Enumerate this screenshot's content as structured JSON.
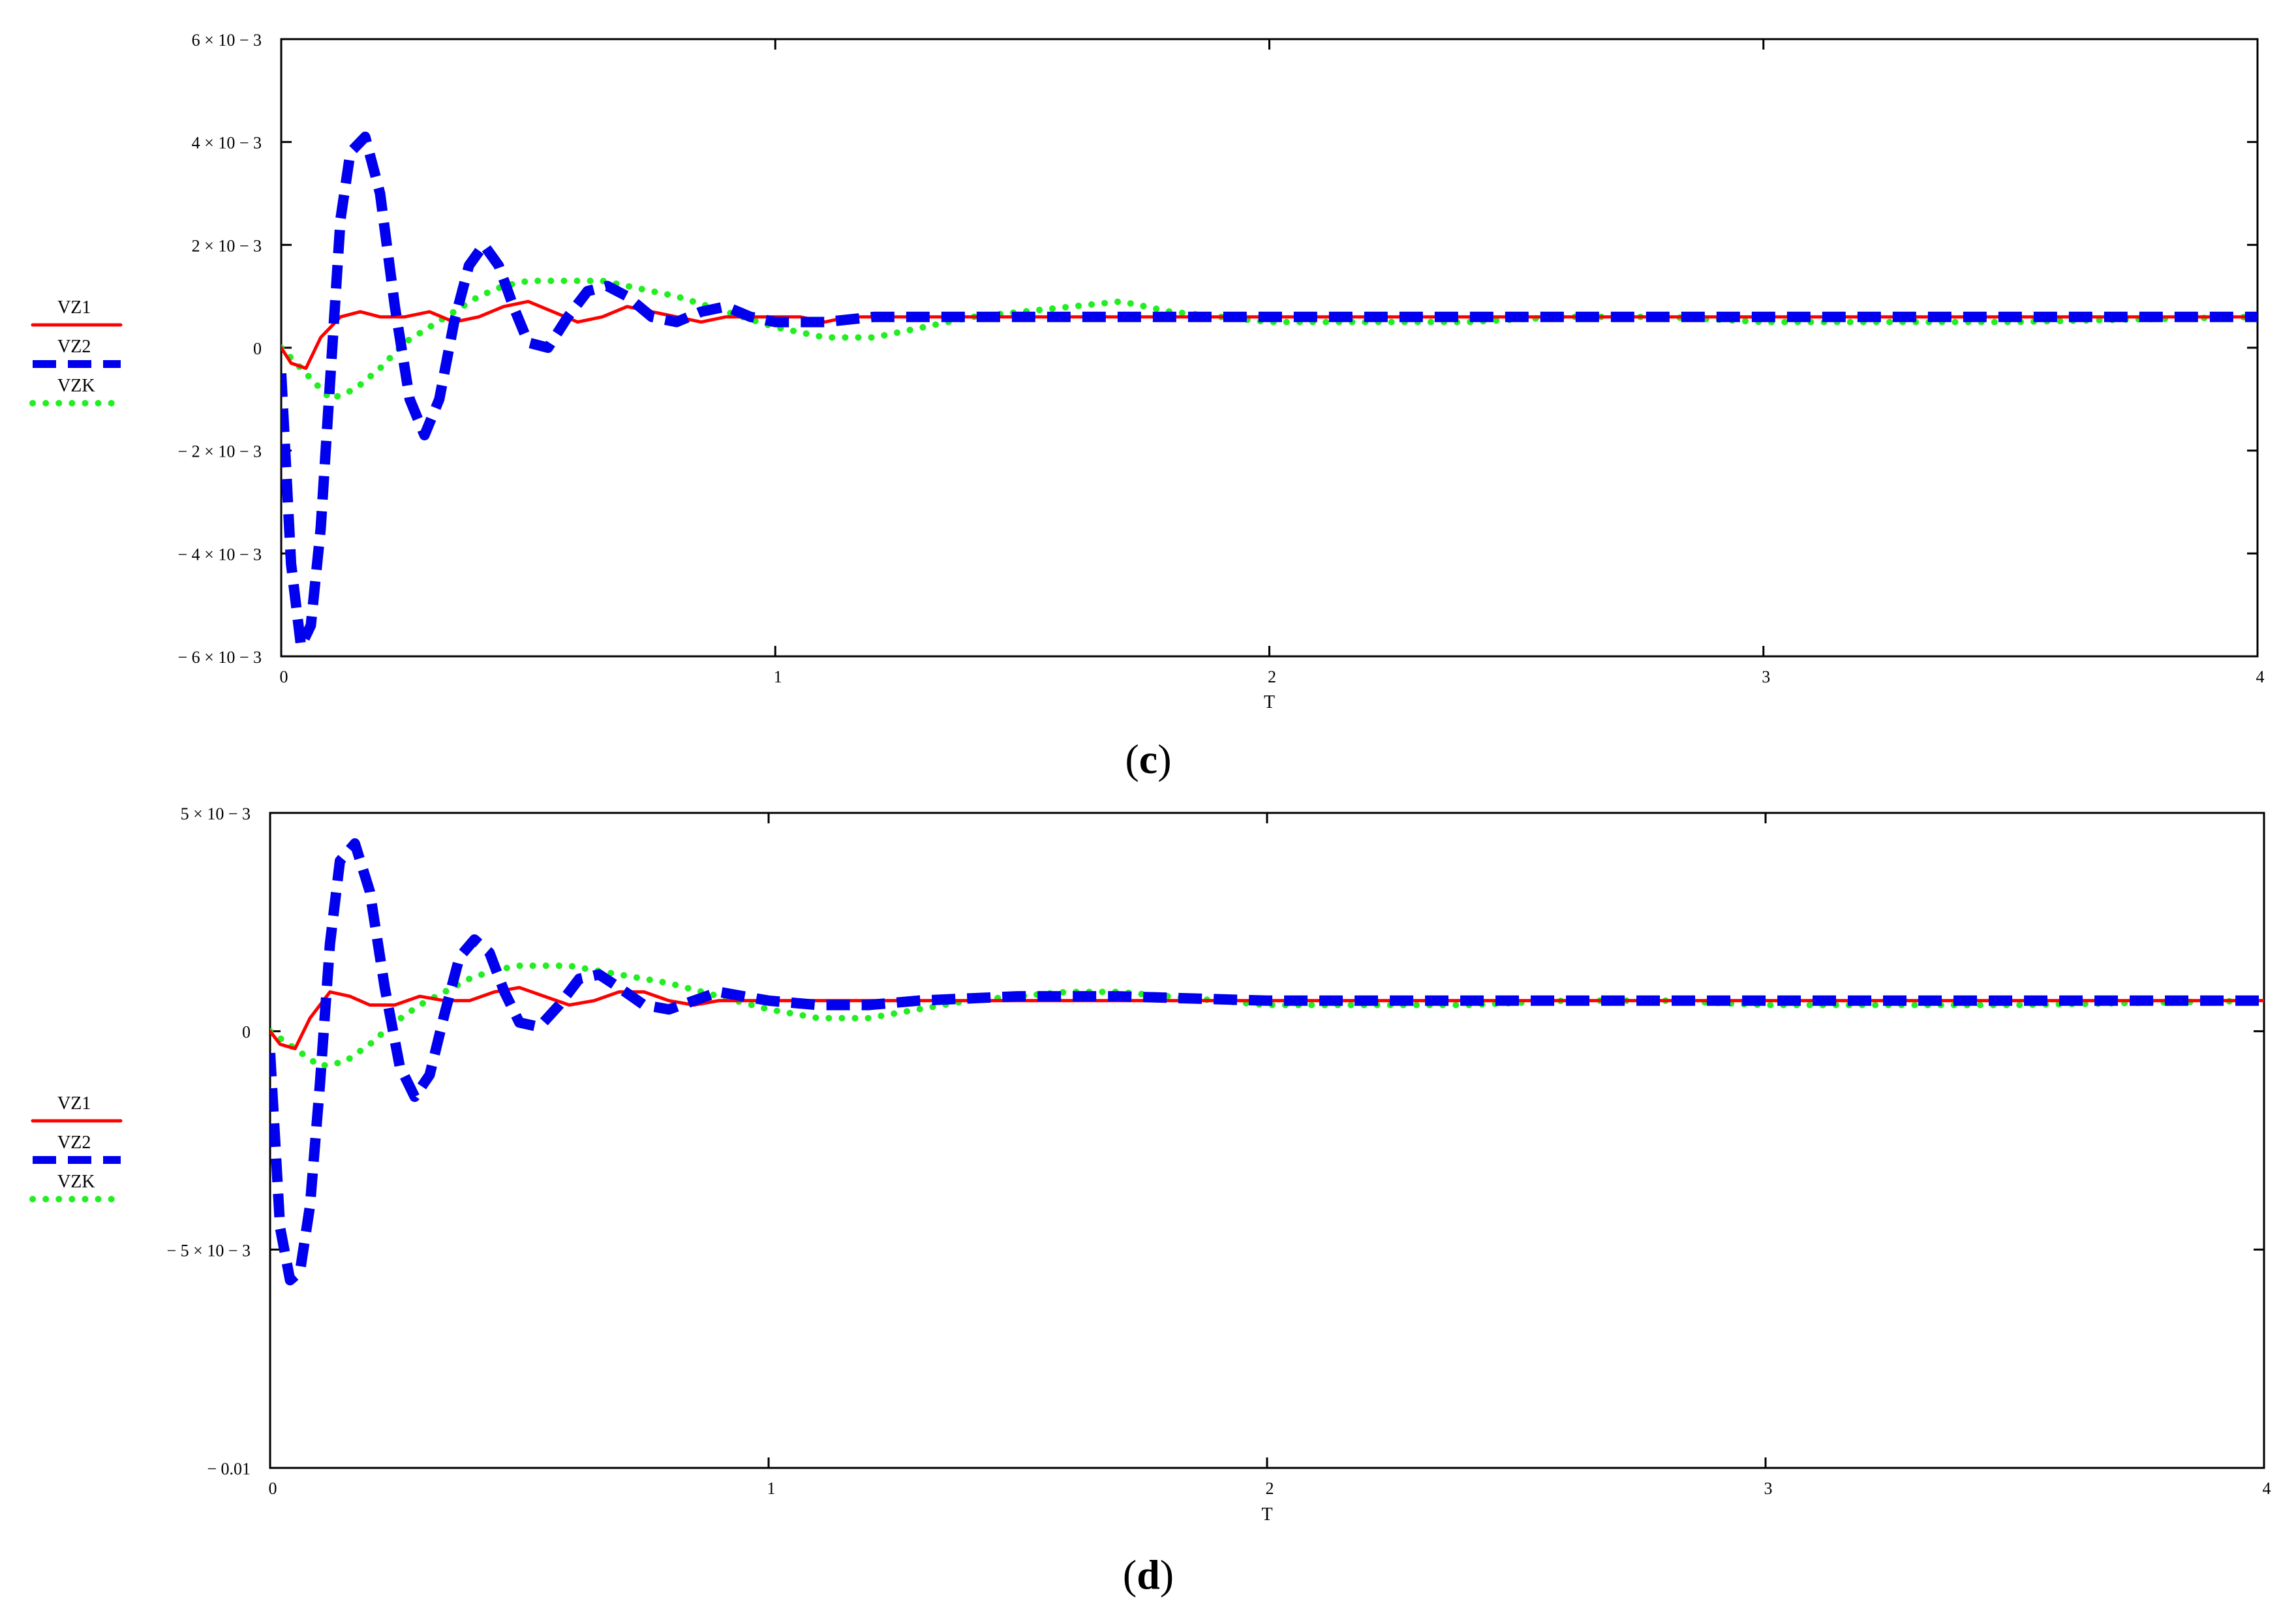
{
  "chart_data": [
    {
      "type": "line",
      "panel_label": "c",
      "xlabel": "T",
      "xlim": [
        0,
        4
      ],
      "ylim": [
        -0.006,
        0.006
      ],
      "x_ticks": [
        {
          "value": 0,
          "label": "0"
        },
        {
          "value": 1,
          "label": "1"
        },
        {
          "value": 2,
          "label": "2"
        },
        {
          "value": 3,
          "label": "3"
        },
        {
          "value": 4,
          "label": "4"
        }
      ],
      "y_ticks": [
        {
          "value": 0.006,
          "label": "6 × 10 − 3"
        },
        {
          "value": 0.004,
          "label": "4 × 10 − 3"
        },
        {
          "value": 0.002,
          "label": "2 × 10 − 3"
        },
        {
          "value": 0,
          "label": "0"
        },
        {
          "value": -0.002,
          "label": "− 2 × 10 − 3"
        },
        {
          "value": -0.004,
          "label": "− 4 × 10 − 3"
        },
        {
          "value": -0.006,
          "label": "− 6 × 10 − 3"
        }
      ],
      "legend": [
        "VZ1",
        "VZ2",
        "VZK"
      ],
      "series": [
        {
          "name": "VZ1",
          "color": "#ff0000",
          "style": "solid",
          "x": [
            0,
            0.02,
            0.05,
            0.08,
            0.12,
            0.16,
            0.2,
            0.25,
            0.3,
            0.35,
            0.4,
            0.45,
            0.5,
            0.55,
            0.6,
            0.65,
            0.7,
            0.75,
            0.8,
            0.85,
            0.9,
            0.95,
            1.0,
            1.05,
            1.1,
            1.15,
            1.2,
            1.3,
            1.4,
            1.5,
            1.6,
            1.7,
            1.8,
            2.0,
            2.5,
            3.0,
            3.5,
            4.0
          ],
          "y": [
            0,
            -0.0003,
            -0.0004,
            0.0002,
            0.0006,
            0.0007,
            0.0006,
            0.0006,
            0.0007,
            0.0005,
            0.0006,
            0.0008,
            0.0009,
            0.0007,
            0.0005,
            0.0006,
            0.0008,
            0.0007,
            0.0006,
            0.0005,
            0.0006,
            0.0006,
            0.0006,
            0.0006,
            0.0005,
            0.0006,
            0.0006,
            0.0006,
            0.0006,
            0.0006,
            0.0006,
            0.0006,
            0.0006,
            0.0006,
            0.0006,
            0.0006,
            0.0006,
            0.0006
          ]
        },
        {
          "name": "VZ2",
          "color": "#0000ee",
          "style": "dashed",
          "x": [
            0,
            0.02,
            0.04,
            0.06,
            0.08,
            0.1,
            0.12,
            0.14,
            0.17,
            0.2,
            0.23,
            0.26,
            0.29,
            0.32,
            0.35,
            0.38,
            0.41,
            0.44,
            0.47,
            0.5,
            0.54,
            0.58,
            0.62,
            0.66,
            0.7,
            0.75,
            0.8,
            0.85,
            0.9,
            0.95,
            1.0,
            1.05,
            1.1,
            1.2,
            1.3,
            1.4,
            1.6,
            1.8,
            2.0,
            2.5,
            3.0,
            3.5,
            4.0
          ],
          "y": [
            -0.0005,
            -0.0042,
            -0.0058,
            -0.0054,
            -0.0035,
            -0.0005,
            0.0025,
            0.0038,
            0.0041,
            0.003,
            0.0008,
            -0.001,
            -0.0017,
            -0.001,
            0.0005,
            0.0016,
            0.002,
            0.0016,
            0.0008,
            0.0001,
            0.0,
            0.0006,
            0.0011,
            0.0012,
            0.001,
            0.0006,
            0.0005,
            0.0007,
            0.0008,
            0.0006,
            0.0005,
            0.0005,
            0.0005,
            0.0006,
            0.0006,
            0.0006,
            0.0006,
            0.0006,
            0.0006,
            0.0006,
            0.0006,
            0.0006,
            0.0006
          ]
        },
        {
          "name": "VZK",
          "color": "#22ee22",
          "style": "dotted",
          "x": [
            0,
            0.05,
            0.1,
            0.15,
            0.2,
            0.25,
            0.3,
            0.35,
            0.4,
            0.45,
            0.5,
            0.55,
            0.6,
            0.65,
            0.7,
            0.75,
            0.8,
            0.9,
            1.0,
            1.1,
            1.2,
            1.3,
            1.4,
            1.5,
            1.6,
            1.7,
            1.8,
            1.9,
            2.0,
            2.2,
            2.4,
            2.6,
            2.8,
            3.0,
            3.2,
            3.5,
            4.0
          ],
          "y": [
            0,
            -0.0005,
            -0.001,
            -0.0008,
            -0.0004,
            0.0001,
            0.0004,
            0.0007,
            0.001,
            0.0012,
            0.0013,
            0.0013,
            0.0013,
            0.0013,
            0.0012,
            0.0011,
            0.001,
            0.0007,
            0.0004,
            0.0002,
            0.0002,
            0.0004,
            0.0006,
            0.0007,
            0.0008,
            0.0009,
            0.0007,
            0.0006,
            0.0005,
            0.0005,
            0.0005,
            0.0006,
            0.0006,
            0.0005,
            0.0005,
            0.0005,
            0.0006
          ]
        }
      ]
    },
    {
      "type": "line",
      "panel_label": "d",
      "xlabel": "T",
      "xlim": [
        0,
        4
      ],
      "ylim": [
        -0.01,
        0.005
      ],
      "x_ticks": [
        {
          "value": 0,
          "label": "0"
        },
        {
          "value": 1,
          "label": "1"
        },
        {
          "value": 2,
          "label": "2"
        },
        {
          "value": 3,
          "label": "3"
        },
        {
          "value": 4,
          "label": "4"
        }
      ],
      "y_ticks": [
        {
          "value": 0.005,
          "label": "5 × 10 − 3"
        },
        {
          "value": 0,
          "label": "0"
        },
        {
          "value": -0.005,
          "label": "− 5 × 10 − 3"
        },
        {
          "value": -0.01,
          "label": "− 0.01"
        }
      ],
      "legend": [
        "VZ1",
        "VZ2",
        "VZK"
      ],
      "series": [
        {
          "name": "VZ1",
          "color": "#ff0000",
          "style": "solid",
          "x": [
            0,
            0.02,
            0.05,
            0.08,
            0.12,
            0.16,
            0.2,
            0.25,
            0.3,
            0.35,
            0.4,
            0.45,
            0.5,
            0.55,
            0.6,
            0.65,
            0.7,
            0.75,
            0.8,
            0.85,
            0.9,
            0.95,
            1.0,
            1.1,
            1.2,
            1.4,
            1.6,
            1.8,
            2.0,
            2.5,
            3.0,
            3.5,
            4.0
          ],
          "y": [
            0,
            -0.0003,
            -0.0004,
            0.0003,
            0.0009,
            0.0008,
            0.0006,
            0.0006,
            0.0008,
            0.0007,
            0.0007,
            0.0009,
            0.001,
            0.0008,
            0.0006,
            0.0007,
            0.0009,
            0.0009,
            0.0007,
            0.0006,
            0.0007,
            0.0007,
            0.0007,
            0.0007,
            0.0007,
            0.0007,
            0.0007,
            0.0007,
            0.0007,
            0.0007,
            0.0007,
            0.0007,
            0.0007
          ]
        },
        {
          "name": "VZ2",
          "color": "#0000ee",
          "style": "dashed",
          "x": [
            0,
            0.02,
            0.04,
            0.06,
            0.08,
            0.1,
            0.12,
            0.14,
            0.17,
            0.2,
            0.23,
            0.26,
            0.29,
            0.32,
            0.35,
            0.38,
            0.41,
            0.44,
            0.47,
            0.5,
            0.54,
            0.58,
            0.62,
            0.66,
            0.7,
            0.75,
            0.8,
            0.85,
            0.9,
            0.95,
            1.0,
            1.1,
            1.2,
            1.3,
            1.5,
            1.7,
            2.0,
            2.5,
            3.0,
            3.5,
            4.0
          ],
          "y": [
            -0.0005,
            -0.0045,
            -0.0057,
            -0.0055,
            -0.004,
            -0.0012,
            0.002,
            0.0039,
            0.0043,
            0.0032,
            0.001,
            -0.0008,
            -0.0015,
            -0.001,
            0.0004,
            0.0017,
            0.0021,
            0.0018,
            0.0009,
            0.0002,
            0.0001,
            0.0006,
            0.0012,
            0.0013,
            0.001,
            0.0006,
            0.0005,
            0.0007,
            0.0009,
            0.0008,
            0.0007,
            0.0006,
            0.0006,
            0.0007,
            0.0008,
            0.0008,
            0.0007,
            0.0007,
            0.0007,
            0.0007,
            0.0007
          ]
        },
        {
          "name": "VZK",
          "color": "#22ee22",
          "style": "dotted",
          "x": [
            0,
            0.05,
            0.1,
            0.15,
            0.2,
            0.25,
            0.3,
            0.35,
            0.4,
            0.45,
            0.5,
            0.55,
            0.6,
            0.65,
            0.7,
            0.75,
            0.8,
            0.9,
            1.0,
            1.1,
            1.2,
            1.3,
            1.4,
            1.5,
            1.6,
            1.7,
            1.8,
            1.9,
            2.0,
            2.2,
            2.4,
            2.6,
            2.8,
            3.0,
            3.2,
            3.5,
            4.0
          ],
          "y": [
            0,
            -0.0004,
            -0.0008,
            -0.0007,
            -0.0003,
            0.0002,
            0.0006,
            0.0009,
            0.0012,
            0.0014,
            0.0015,
            0.0015,
            0.0015,
            0.0014,
            0.0013,
            0.0012,
            0.0011,
            0.0008,
            0.0005,
            0.0003,
            0.0003,
            0.0005,
            0.0007,
            0.0008,
            0.0009,
            0.0009,
            0.0008,
            0.0007,
            0.0006,
            0.0006,
            0.0006,
            0.0007,
            0.0007,
            0.0006,
            0.0006,
            0.0006,
            0.0007
          ]
        }
      ]
    }
  ]
}
